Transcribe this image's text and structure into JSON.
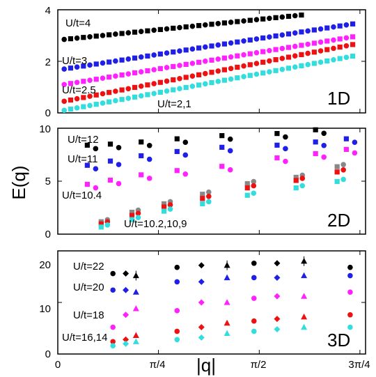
{
  "figure": {
    "ylabel": "E(q)",
    "xlabel": "|q|",
    "xticks": [
      "0",
      "π/4",
      "π/2",
      "3π/4"
    ]
  },
  "colors": {
    "black": "#000000",
    "blue": "#1f1fe6",
    "magenta": "#ff22ff",
    "red": "#ee1111",
    "cyan": "#33dddd",
    "gray": "#888888"
  },
  "chart_data": [
    {
      "type": "scatter",
      "panel": "1D",
      "dimension_label": "1D",
      "xlim": [
        0,
        2.4
      ],
      "ylim": [
        0,
        4
      ],
      "yticks": [
        "0",
        "2",
        "4"
      ],
      "annotations": [
        "U/t=4",
        "U/t=3",
        "U/t=2.5",
        "U/t=2,1"
      ],
      "series": [
        {
          "name": "U/t=4",
          "color": "black",
          "y0": 2.85,
          "y1": 4.0
        },
        {
          "name": "U/t=3",
          "color": "blue",
          "y0": 1.7,
          "y1": 3.45
        },
        {
          "name": "U/t=2.5",
          "color": "magenta",
          "y0": 1.1,
          "y1": 2.95
        },
        {
          "name": "U/t=2",
          "color": "red",
          "y0": 0.45,
          "y1": 2.65
        },
        {
          "name": "U/t=1",
          "color": "cyan",
          "y0": 0.1,
          "y1": 2.2
        }
      ]
    },
    {
      "type": "scatter",
      "panel": "2D",
      "dimension_label": "2D",
      "xlim": [
        0,
        2.4
      ],
      "ylim": [
        0,
        10
      ],
      "yticks": [
        "0",
        "5",
        "10"
      ],
      "annotations": [
        "U/t=12",
        "U/t=11",
        "U/t=10.4",
        "U/t=10.2,10,9"
      ],
      "series": [
        {
          "name": "U/t=12",
          "color": "black",
          "x": [
            0.23,
            0.41,
            0.65,
            0.93,
            1.28,
            1.71,
            2.01
          ],
          "y": [
            8.4,
            8.5,
            8.7,
            9.0,
            9.3,
            9.5,
            9.85
          ]
        },
        {
          "name": "U/t=11",
          "color": "blue",
          "x": [
            0.23,
            0.41,
            0.65,
            0.93,
            1.28,
            1.71,
            2.01,
            2.25
          ],
          "y": [
            6.5,
            6.9,
            7.4,
            7.8,
            8.2,
            8.4,
            8.7,
            9.0
          ]
        },
        {
          "name": "U/t=10.4",
          "color": "magenta",
          "x": [
            0.23,
            0.41,
            0.65,
            0.93,
            1.28,
            1.71,
            2.01,
            2.25
          ],
          "y": [
            4.7,
            5.1,
            5.6,
            6.0,
            6.4,
            7.2,
            7.6,
            8.0
          ]
        },
        {
          "name": "U/t=10.2",
          "color": "gray",
          "x": [
            0.36,
            0.6,
            0.85,
            1.15,
            1.5,
            1.88,
            2.2
          ],
          "y": [
            1.3,
            2.2,
            3.0,
            3.9,
            4.9,
            5.5,
            6.5
          ]
        },
        {
          "name": "U/t=10",
          "color": "red",
          "x": [
            0.36,
            0.6,
            0.85,
            1.15,
            1.5,
            1.88,
            2.2
          ],
          "y": [
            1.1,
            1.9,
            2.7,
            3.5,
            4.5,
            5.2,
            6.0
          ]
        },
        {
          "name": "U/t=9",
          "color": "cyan",
          "x": [
            0.36,
            0.6,
            0.85,
            1.15,
            1.5,
            1.88,
            2.2
          ],
          "y": [
            0.8,
            1.5,
            2.3,
            3.0,
            3.8,
            4.5,
            5.1
          ]
        }
      ]
    },
    {
      "type": "scatter",
      "panel": "3D",
      "dimension_label": "3D",
      "xlim": [
        0,
        2.4
      ],
      "ylim": [
        0,
        25
      ],
      "yticks": [
        "0",
        "10",
        "20"
      ],
      "annotations": [
        "U/t=22",
        "U/t=20",
        "U/t=18",
        "U/t=16,14"
      ],
      "series": [
        {
          "name": "U/t=22",
          "color": "black",
          "x": [
            0.43,
            0.53,
            0.61,
            0.93,
            1.12,
            1.32,
            1.53,
            1.71,
            1.92,
            2.28
          ],
          "y": [
            19.5,
            19.5,
            19.0,
            21.0,
            21.5,
            21.5,
            22.0,
            22.0,
            22.5,
            21.0
          ]
        },
        {
          "name": "U/t=20",
          "color": "blue",
          "x": [
            0.43,
            0.53,
            0.61,
            0.93,
            1.12,
            1.32,
            1.53,
            1.71,
            1.92,
            2.28
          ],
          "y": [
            15.5,
            15.5,
            15.0,
            17.5,
            17.5,
            18.5,
            18.5,
            18.5,
            19.0,
            19.0
          ]
        },
        {
          "name": "U/t=18",
          "color": "magenta",
          "x": [
            0.43,
            0.53,
            0.61,
            0.93,
            1.12,
            1.32,
            1.53,
            1.71,
            1.92,
            2.28
          ],
          "y": [
            6.5,
            9.5,
            11.0,
            10.5,
            12.5,
            12.5,
            13.5,
            14.0,
            14.0,
            15.0
          ]
        },
        {
          "name": "U/t=16",
          "color": "red",
          "x": [
            0.43,
            0.53,
            0.61,
            0.93,
            1.12,
            1.32,
            1.53,
            1.71,
            1.92,
            2.28
          ],
          "y": [
            3.0,
            3.5,
            4.5,
            5.5,
            6.5,
            7.5,
            8.0,
            8.5,
            9.0,
            9.5
          ]
        },
        {
          "name": "U/t=14",
          "color": "cyan",
          "x": [
            0.43,
            0.53,
            0.61,
            0.93,
            1.12,
            1.32,
            1.53,
            1.71,
            1.92,
            2.28
          ],
          "y": [
            2.0,
            2.5,
            3.0,
            3.5,
            4.0,
            5.0,
            5.5,
            6.0,
            6.5,
            6.5
          ]
        }
      ]
    }
  ]
}
